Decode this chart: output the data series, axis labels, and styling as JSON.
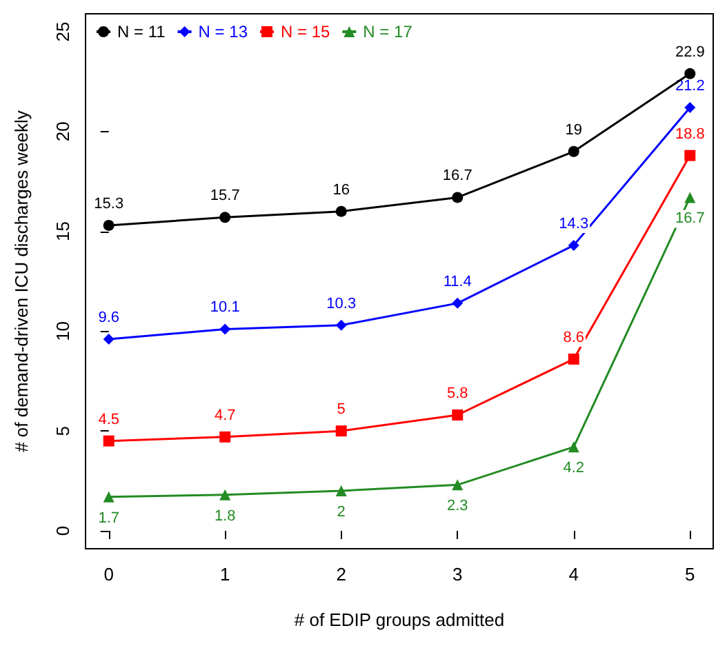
{
  "chart_data": {
    "type": "line",
    "xlabel": "# of EDIP groups admitted",
    "ylabel": "# of demand-driven ICU discharges weekly",
    "x": [
      0,
      1,
      2,
      3,
      4,
      5
    ],
    "series": [
      {
        "name": "N = 11",
        "color": "#000000",
        "marker": "circle",
        "values": [
          15.3,
          15.7,
          16,
          16.7,
          19,
          22.9
        ]
      },
      {
        "name": "N = 13",
        "color": "#0000ff",
        "marker": "diamond",
        "values": [
          9.6,
          10.1,
          10.3,
          11.4,
          14.3,
          21.2
        ]
      },
      {
        "name": "N = 15",
        "color": "#ff0000",
        "marker": "square",
        "values": [
          4.5,
          4.7,
          5,
          5.8,
          8.6,
          18.8
        ]
      },
      {
        "name": "N = 17",
        "color": "#228b22",
        "marker": "triangle",
        "values": [
          1.7,
          1.8,
          2,
          2.3,
          4.2,
          16.7
        ]
      }
    ],
    "xlim": [
      -0.2,
      5.2
    ],
    "xticks": [
      0,
      1,
      2,
      3,
      4,
      5
    ],
    "ylim": [
      -0.9,
      25.9
    ],
    "yticks": [
      0,
      5,
      10,
      15,
      20,
      25
    ],
    "data_labels": true,
    "legend": "top left",
    "grid": false,
    "line_style": "solid"
  }
}
